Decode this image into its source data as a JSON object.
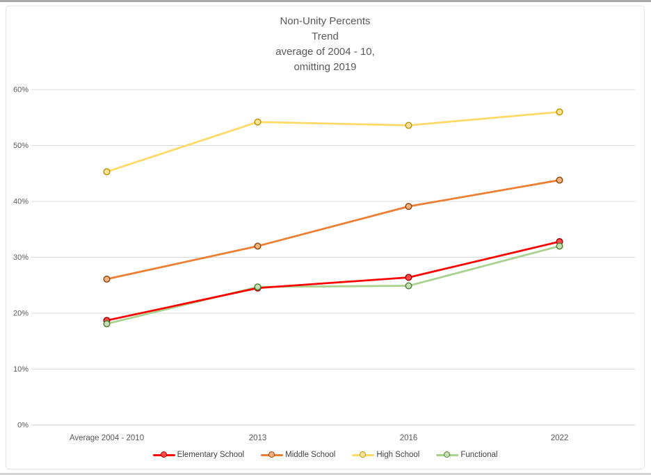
{
  "chart_data": {
    "type": "line",
    "title_lines": [
      "Non-Unity Percents",
      "Trend",
      "average of 2004 - 10,",
      "omitting 2019"
    ],
    "categories": [
      "Average 2004 - 2010",
      "2013",
      "2016",
      "2022"
    ],
    "series": [
      {
        "name": "Elementary School",
        "values": [
          18.7,
          24.5,
          26.4,
          32.8
        ],
        "color": "#ff0000",
        "marker_fill": "#ff4b4b",
        "marker_border": "#a00000"
      },
      {
        "name": "Middle School",
        "values": [
          26.1,
          32.0,
          39.1,
          43.8
        ],
        "color": "#ed7d31",
        "marker_fill": "#f2b27e",
        "marker_border": "#8f4a0e"
      },
      {
        "name": "High School",
        "values": [
          45.3,
          54.2,
          53.6,
          56.0
        ],
        "color": "#ffd966",
        "marker_fill": "#ffe599",
        "marker_border": "#bf9000"
      },
      {
        "name": "Functional",
        "values": [
          18.1,
          24.7,
          24.9,
          32.0
        ],
        "color": "#a9d18e",
        "marker_fill": "#c6e0b4",
        "marker_border": "#538135"
      }
    ],
    "y_ticks": [
      "0%",
      "10%",
      "20%",
      "30%",
      "40%",
      "50%",
      "60%"
    ],
    "ylim": [
      0,
      60
    ],
    "grid": true,
    "legend_position": "bottom",
    "colors": {
      "gridline": "#d9d9d9",
      "axis_line": "#c9c9c9",
      "title_text": "#595959",
      "tick_text": "#595959",
      "legend_text": "#404040"
    }
  }
}
